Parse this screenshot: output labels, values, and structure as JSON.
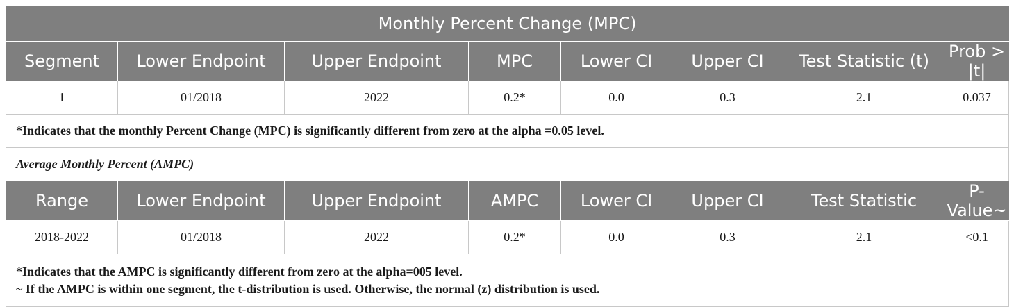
{
  "mpc": {
    "title": "Monthly Percent Change (MPC)",
    "headers": [
      "Segment",
      "Lower Endpoint",
      "Upper Endpoint",
      "MPC",
      "Lower CI",
      "Upper CI",
      "Test Statistic (t)",
      "Prob > |t|"
    ],
    "row": [
      "1",
      "01/2018",
      "2022",
      "0.2*",
      "0.0",
      "0.3",
      "2.1",
      "0.037"
    ],
    "note": "*Indicates that the monthly Percent Change (MPC) is significantly different from zero at the alpha =0.05 level."
  },
  "ampc": {
    "title": "Average Monthly Percent (AMPC)",
    "headers": [
      "Range",
      "Lower Endpoint",
      "Upper Endpoint",
      "AMPC",
      "Lower CI",
      "Upper CI",
      "Test Statistic",
      "P-Value~"
    ],
    "row": [
      "2018-2022",
      "01/2018",
      "2022",
      "0.2*",
      "0.0",
      "0.3",
      "2.1",
      "<0.1"
    ],
    "note_line1": "*Indicates that the AMPC is significantly different from zero at the alpha=005 level.",
    "note_line2": "~ If the AMPC is within one segment, the t-distribution is used. Otherwise, the normal (z) distribution is used."
  }
}
